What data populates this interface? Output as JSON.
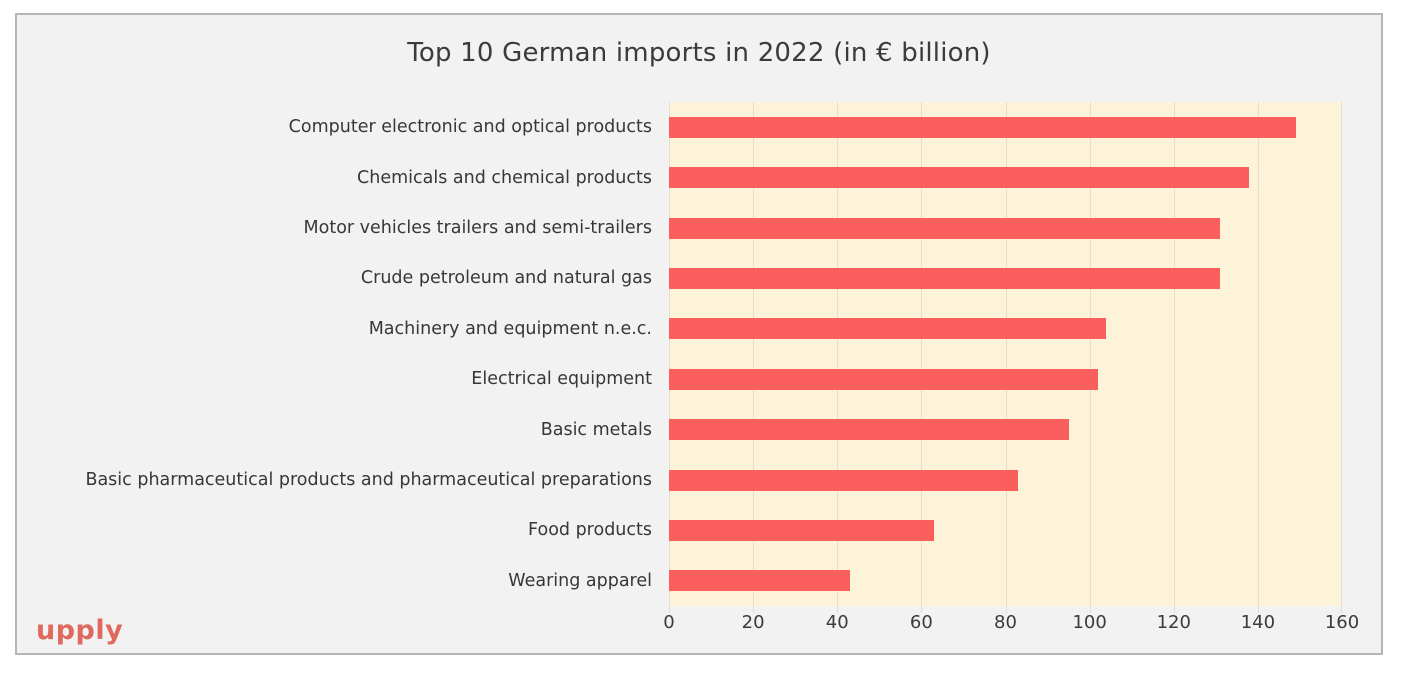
{
  "page": {
    "canvas_background": "#ffffff",
    "card_background": "#f2f2f3",
    "card_border_color": "#b5b5b5"
  },
  "chart_data": {
    "type": "bar",
    "orientation": "horizontal",
    "title": "Top 10 German imports in 2022 (in € billion)",
    "unit": "€ billion",
    "categories": [
      "Computer electronic and optical products",
      "Chemicals and chemical products",
      "Motor vehicles trailers and semi-trailers",
      "Crude petroleum and natural gas",
      "Machinery and equipment n.e.c.",
      "Electrical equipment",
      "Basic metals",
      "Basic pharmaceutical products and pharmaceutical preparations",
      "Food products",
      "Wearing apparel"
    ],
    "values": [
      149,
      138,
      131,
      131,
      104,
      102,
      95,
      83,
      63,
      43
    ],
    "x_ticks": [
      "0",
      "20",
      "40",
      "60",
      "80",
      "100",
      "120",
      "140",
      "160"
    ],
    "xlim": [
      0,
      160
    ],
    "grid": "vertical",
    "legend_position": "none",
    "colors": {
      "bar": "#fa5f5e",
      "plot_background": "#fdf3d8",
      "gridline": "#e6ddd2",
      "title_text": "#3b3b3b",
      "label_text": "#373737"
    }
  },
  "branding": {
    "logo_text": "upply",
    "logo_color": "#e0695f"
  }
}
